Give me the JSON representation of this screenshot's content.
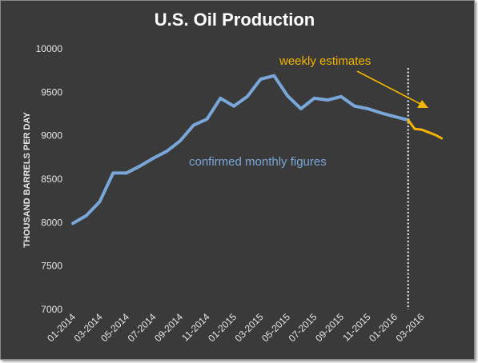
{
  "chart_data": {
    "type": "line",
    "title": "U.S. Oil Production",
    "xlabel": "",
    "ylabel": "THOUSAND BARRELS PER DAY",
    "ylim": [
      7000,
      10000
    ],
    "yticks": [
      7000,
      7500,
      8000,
      8500,
      9000,
      9500,
      10000
    ],
    "xticks": [
      "01-2014",
      "03-2014",
      "05-2014",
      "07-2014",
      "09-2014",
      "11-2014",
      "01-2015",
      "03-2015",
      "05-2015",
      "07-2015",
      "09-2015",
      "11-2015",
      "01-2016",
      "03-2016"
    ],
    "grid": false,
    "series": [
      {
        "label": "confirmed monthly figures",
        "color": "#7aa7d9",
        "x": [
          "01-2014",
          "02-2014",
          "03-2014",
          "04-2014",
          "05-2014",
          "06-2014",
          "07-2014",
          "08-2014",
          "09-2014",
          "10-2014",
          "11-2014",
          "12-2014",
          "01-2015",
          "02-2015",
          "03-2015",
          "04-2015",
          "05-2015",
          "06-2015",
          "07-2015",
          "08-2015",
          "09-2015",
          "10-2015",
          "11-2015",
          "12-2015",
          "01-2016",
          "02-2016"
        ],
        "values": [
          7990,
          8080,
          8240,
          8570,
          8570,
          8650,
          8740,
          8820,
          8940,
          9120,
          9190,
          9430,
          9340,
          9450,
          9650,
          9690,
          9460,
          9310,
          9430,
          9410,
          9450,
          9340,
          9310,
          9260,
          9220,
          9180
        ]
      },
      {
        "label": "weekly estimates",
        "color": "#f5b400",
        "x": [
          "02-2016",
          "02-2016 wk2",
          "03-2016",
          "03-2016 wk2",
          "04-2016",
          "04-2016 wk2"
        ],
        "values": [
          9180,
          9077,
          9070,
          9040,
          9010,
          8970
        ]
      }
    ],
    "annotations": {
      "weekly_label": "weekly estimates",
      "monthly_label": "confirmed monthly figures",
      "weekly_color": "#f5b400",
      "monthly_color": "#7aa7d9",
      "divider_color": "#dce8f5",
      "divider_style": "dotted",
      "divider_at": "02-2016"
    }
  }
}
